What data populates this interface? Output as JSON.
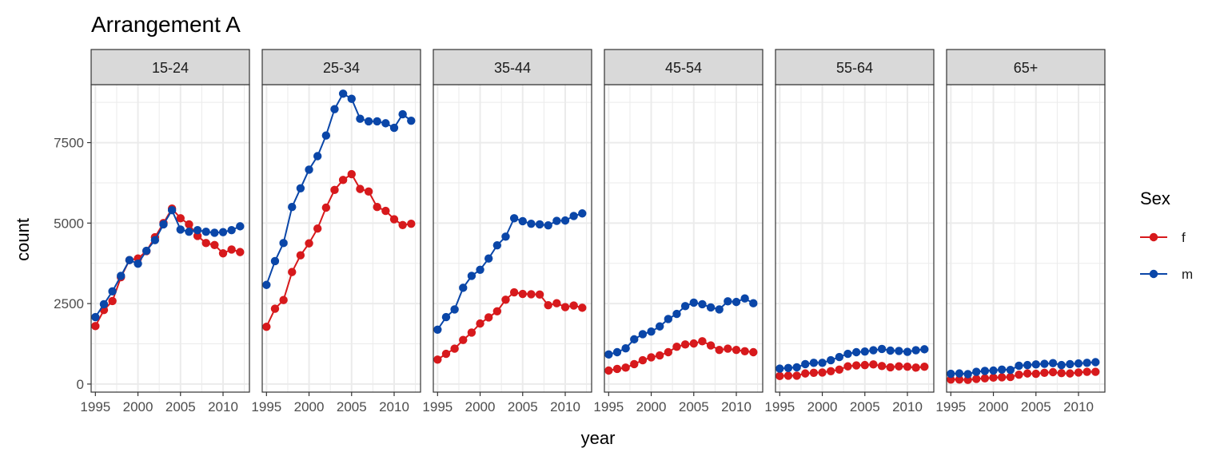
{
  "chart_data": {
    "type": "line",
    "title": "Arrangement A",
    "xlabel": "year",
    "ylabel": "count",
    "facets": [
      "15-24",
      "25-34",
      "35-44",
      "45-54",
      "55-64",
      "65+"
    ],
    "x": [
      1995,
      1996,
      1997,
      1998,
      1999,
      2000,
      2001,
      2002,
      2003,
      2004,
      2005,
      2006,
      2007,
      2008,
      2009,
      2010,
      2011,
      2012
    ],
    "xlim": [
      1994.5,
      2013.1
    ],
    "ylim": [
      -250,
      9300
    ],
    "x_ticks": [
      1995,
      2000,
      2005,
      2010
    ],
    "y_ticks": [
      0,
      2500,
      5000,
      7500
    ],
    "grid": true,
    "legend": {
      "title": "Sex",
      "position": "right",
      "entries": [
        {
          "label": "f",
          "color": "#d7191c"
        },
        {
          "label": "m",
          "color": "#0a46a8"
        }
      ]
    },
    "panels": [
      {
        "label": "15-24",
        "series": [
          {
            "name": "f",
            "values": [
              1800,
              2300,
              2580,
              3320,
              3850,
              3900,
              4130,
              4560,
              5000,
              5450,
              5150,
              4960,
              4600,
              4380,
              4320,
              4060,
              4180,
              4100
            ]
          },
          {
            "name": "m",
            "values": [
              2080,
              2480,
              2880,
              3360,
              3850,
              3740,
              4140,
              4470,
              4960,
              5400,
              4800,
              4730,
              4780,
              4730,
              4700,
              4720,
              4780,
              4900
            ]
          }
        ]
      },
      {
        "label": "25-34",
        "series": [
          {
            "name": "f",
            "values": [
              1780,
              2340,
              2610,
              3480,
              4000,
              4370,
              4830,
              5480,
              6030,
              6340,
              6520,
              6060,
              5980,
              5500,
              5380,
              5120,
              4940,
              4980
            ]
          },
          {
            "name": "m",
            "values": [
              3080,
              3820,
              4380,
              5500,
              6080,
              6660,
              7080,
              7720,
              8540,
              9020,
              8860,
              8240,
              8160,
              8160,
              8100,
              7960,
              8380,
              8180
            ]
          }
        ]
      },
      {
        "label": "35-44",
        "series": [
          {
            "name": "f",
            "values": [
              760,
              940,
              1100,
              1370,
              1600,
              1880,
              2070,
              2260,
              2620,
              2850,
              2800,
              2790,
              2780,
              2450,
              2510,
              2390,
              2440,
              2370
            ]
          },
          {
            "name": "m",
            "values": [
              1690,
              2080,
              2320,
              2990,
              3360,
              3550,
              3900,
              4310,
              4580,
              5150,
              5060,
              4980,
              4960,
              4930,
              5070,
              5080,
              5220,
              5300
            ]
          }
        ]
      },
      {
        "label": "45-54",
        "series": [
          {
            "name": "f",
            "values": [
              420,
              470,
              510,
              620,
              740,
              830,
              890,
              990,
              1160,
              1230,
              1260,
              1330,
              1200,
              1060,
              1100,
              1060,
              1020,
              990
            ]
          },
          {
            "name": "m",
            "values": [
              920,
              990,
              1110,
              1390,
              1550,
              1630,
              1790,
              2020,
              2180,
              2420,
              2530,
              2480,
              2380,
              2320,
              2570,
              2550,
              2660,
              2510
            ]
          }
        ]
      },
      {
        "label": "55-64",
        "series": [
          {
            "name": "f",
            "values": [
              250,
              260,
              260,
              330,
              350,
              360,
              400,
              450,
              550,
              580,
              590,
              610,
              560,
              520,
              550,
              540,
              510,
              540
            ]
          },
          {
            "name": "m",
            "values": [
              480,
              500,
              520,
              620,
              660,
              660,
              740,
              840,
              940,
              990,
              1010,
              1050,
              1090,
              1040,
              1030,
              1000,
              1050,
              1080
            ]
          }
        ]
      },
      {
        "label": "65+",
        "series": [
          {
            "name": "f",
            "values": [
              140,
              140,
              130,
              160,
              180,
              200,
              210,
              220,
              290,
              330,
              320,
              350,
              370,
              340,
              330,
              360,
              380,
              380
            ]
          },
          {
            "name": "m",
            "values": [
              320,
              330,
              310,
              380,
              410,
              420,
              450,
              440,
              570,
              590,
              610,
              630,
              650,
              590,
              620,
              640,
              660,
              680
            ]
          }
        ]
      }
    ]
  }
}
